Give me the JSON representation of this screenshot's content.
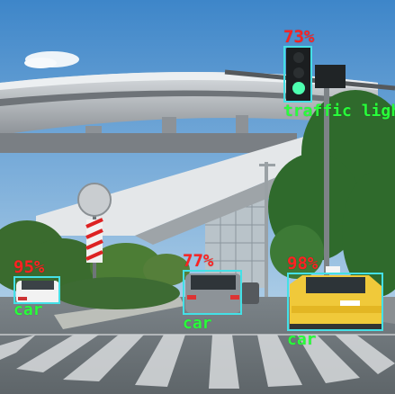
{
  "detections": [
    {
      "class_label": "traffic light",
      "confidence_label": "73%"
    },
    {
      "class_label": "car",
      "confidence_label": "95%"
    },
    {
      "class_label": "car",
      "confidence_label": "77%"
    },
    {
      "class_label": "car",
      "confidence_label": "98%"
    }
  ],
  "colors": {
    "box": "#44e0e6",
    "confidence_text": "#ff2222",
    "class_text": "#28ff3a"
  }
}
